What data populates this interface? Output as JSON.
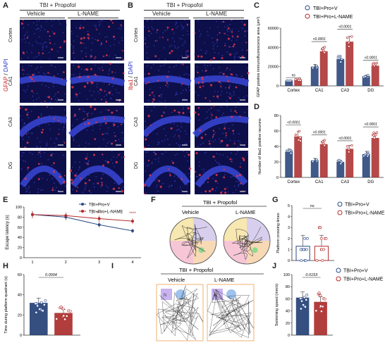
{
  "panels": {
    "A": "A",
    "B": "B",
    "C": "C",
    "D": "D",
    "E": "E",
    "F": "F",
    "G": "G",
    "H": "H",
    "I": "I",
    "J": "J"
  },
  "micro_header": {
    "group": "TBI + Propofol",
    "vehicle": "Vehicle",
    "lname": "L-NAME"
  },
  "regions": [
    "Cortex",
    "CA1",
    "CA3",
    "DG"
  ],
  "stain_a": {
    "a": "GFAP",
    "b": " / ",
    "c": "DAPI"
  },
  "stain_b": {
    "a": "Iba1",
    "b": " / ",
    "c": "DAPI"
  },
  "legend": {
    "v": "TBI+Pro+V",
    "l": "TBI+Pro+L-NAME"
  },
  "colors": {
    "vehicle": "#2b4a86",
    "lname": "#b22a2a",
    "vehicle_fill": "#1f3c73",
    "lname_fill": "#a82828"
  },
  "chart_data": [
    {
      "panel": "C",
      "type": "bar",
      "categories": [
        "Cortex",
        "CA1",
        "CA3",
        "DG"
      ],
      "ylabel": "GFAP positive immunofluorescence area (μm²)",
      "ylim": [
        0,
        60000
      ],
      "yticks": [
        "0",
        "20000",
        "40000",
        "60000"
      ],
      "series": [
        {
          "name": "TBI+Pro+V",
          "values": [
            5000,
            20000,
            28000,
            10000
          ]
        },
        {
          "name": "TBI+Pro+L-NAME",
          "values": [
            6500,
            36000,
            46000,
            21000
          ]
        }
      ],
      "annotations": [
        "ns",
        "<0.0001",
        "<0.0001",
        "<0.0001"
      ]
    },
    {
      "panel": "D",
      "type": "bar",
      "categories": [
        "Cortex",
        "CA1",
        "CA3",
        "DG"
      ],
      "ylabel": "Number of Iba1 positive neurons",
      "ylim": [
        0,
        80
      ],
      "yticks": [
        "0",
        "20",
        "40",
        "60",
        "80"
      ],
      "series": [
        {
          "name": "TBI+Pro+V",
          "values": [
            33,
            22,
            20,
            30
          ]
        },
        {
          "name": "TBI+Pro+L-NAME",
          "values": [
            53,
            43,
            37,
            51
          ]
        }
      ],
      "annotations": [
        "<0.0001",
        "<0.0001",
        "<0.0001",
        "<0.0001"
      ]
    },
    {
      "panel": "E",
      "type": "line",
      "x": [
        1,
        2,
        3,
        4
      ],
      "ylabel": "Escape latency (s)",
      "ylim": [
        0,
        100
      ],
      "yticks": [
        "0",
        "20",
        "40",
        "60",
        "80",
        "100"
      ],
      "series": [
        {
          "name": "TBI+Pro+V",
          "values": [
            85,
            80,
            65,
            53
          ]
        },
        {
          "name": "TBI+Pro+L-NAME",
          "values": [
            85,
            83,
            77,
            72
          ]
        }
      ],
      "annotations": [
        "***",
        "****"
      ]
    },
    {
      "panel": "G",
      "type": "bar",
      "categories": [
        "TBI+Pro+V",
        "TBI+Pro+L-NAME"
      ],
      "ylabel": "Platform crossing times",
      "ylim": [
        0,
        5
      ],
      "yticks": [
        "0",
        "1",
        "2",
        "3",
        "4",
        "5"
      ],
      "values": [
        1.3,
        1.3
      ],
      "annotations": [
        "ns"
      ]
    },
    {
      "panel": "H",
      "type": "bar",
      "categories": [
        "TBI+Pro+V",
        "TBI+Pro+L-NAME"
      ],
      "ylabel": "Time during platform quadrant (s)",
      "ylim": [
        0,
        60
      ],
      "yticks": [
        "0",
        "20",
        "40",
        "60"
      ],
      "values": [
        32,
        22
      ],
      "annotations": [
        "0.0004"
      ]
    },
    {
      "panel": "J",
      "type": "bar",
      "categories": [
        "TBI+Pro+V",
        "TBI+Pro+L-NAME"
      ],
      "ylabel": "Swimming speed (mm/s)",
      "ylim": [
        0,
        100
      ],
      "yticks": [
        "0",
        "20",
        "40",
        "60",
        "80",
        "100"
      ],
      "values": [
        62,
        55
      ],
      "annotations": [
        "0.0153"
      ]
    }
  ],
  "panel_f": {
    "group": "TBI + Propofol",
    "vehicle": "Vehicle",
    "lname": "L-NAME"
  },
  "panel_i": {
    "group": "TBI + Propofol",
    "vehicle": "Vehicle",
    "lname": "L-NAME",
    "n": "N"
  }
}
